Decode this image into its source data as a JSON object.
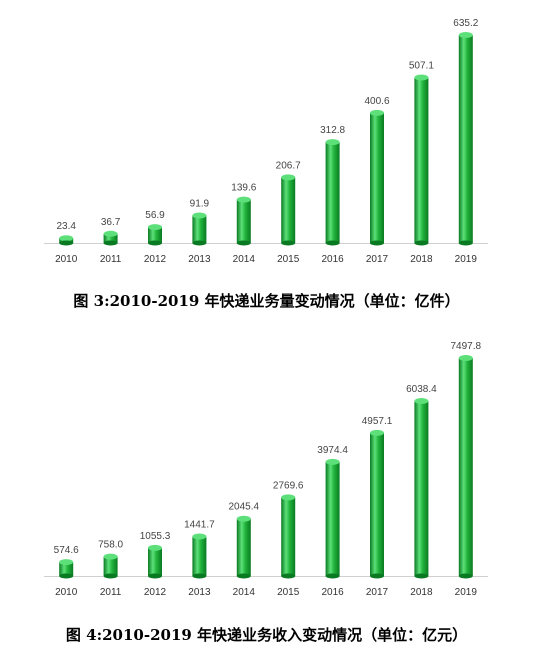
{
  "colors": {
    "bar_light": "#5de07a",
    "bar_mid": "#22b43c",
    "bar_dark": "#0a7a22",
    "axis": "#d0d0d0"
  },
  "chart_data": [
    {
      "type": "bar",
      "categories": [
        "2010",
        "2011",
        "2012",
        "2013",
        "2014",
        "2015",
        "2016",
        "2017",
        "2018",
        "2019"
      ],
      "values": [
        23.4,
        36.7,
        56.9,
        91.9,
        139.6,
        206.7,
        312.8,
        400.6,
        507.1,
        635.2
      ],
      "value_labels": [
        "23.4",
        "36.7",
        "56.9",
        "91.9",
        "139.6",
        "206.7",
        "312.8",
        "400.6",
        "507.1",
        "635.2"
      ],
      "caption": "图 3:2010-2019 年快递业务量变动情况（单位：亿件）",
      "ylim": [
        0,
        635.2
      ],
      "grid": false
    },
    {
      "type": "bar",
      "categories": [
        "2010",
        "2011",
        "2012",
        "2013",
        "2014",
        "2015",
        "2016",
        "2017",
        "2018",
        "2019"
      ],
      "values": [
        574.6,
        758.0,
        1055.3,
        1441.7,
        2045.4,
        2769.6,
        3974.4,
        4957.1,
        6038.4,
        7497.8
      ],
      "value_labels": [
        "574.6",
        "758.0",
        "1055.3",
        "1441.7",
        "2045.4",
        "2769.6",
        "3974.4",
        "4957.1",
        "6038.4",
        "7497.8"
      ],
      "caption": "图 4:2010-2019 年快递业务收入变动情况（单位：亿元）",
      "ylim": [
        0,
        7497.8
      ],
      "grid": false
    }
  ]
}
